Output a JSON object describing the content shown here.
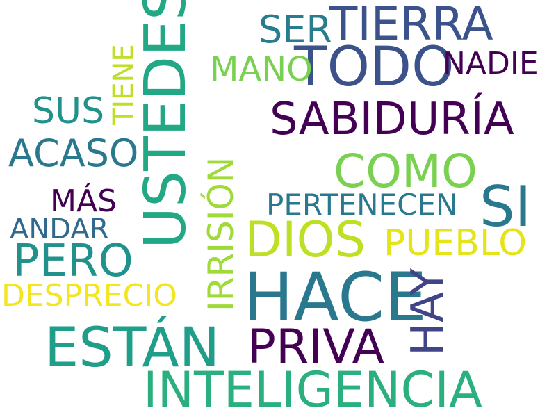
{
  "words": {
    "tierra": {
      "text": "TIERRA",
      "color": "#3b528b"
    },
    "ser": {
      "text": "SER",
      "color": "#287c8e"
    },
    "todo": {
      "text": "TODO",
      "color": "#3b528b"
    },
    "nadie": {
      "text": "NADIE",
      "color": "#440154"
    },
    "mano": {
      "text": "MANO",
      "color": "#7ad151"
    },
    "ustedes": {
      "text": "USTEDES",
      "color": "#22a884"
    },
    "tiene": {
      "text": "TIENE",
      "color": "#bddf26"
    },
    "sus": {
      "text": "SUS",
      "color": "#21918c"
    },
    "sabiduria": {
      "text": "SABIDURÍA",
      "color": "#440154"
    },
    "acaso": {
      "text": "ACASO",
      "color": "#2a788e"
    },
    "irrision": {
      "text": "IRRISIÓN",
      "color": "#a0da39"
    },
    "como": {
      "text": "COMO",
      "color": "#7ad151"
    },
    "mas": {
      "text": "MÁS",
      "color": "#440154"
    },
    "pertenecen": {
      "text": "PERTENECEN",
      "color": "#2a788e"
    },
    "si": {
      "text": "SI",
      "color": "#2a788e"
    },
    "andar": {
      "text": "ANDAR",
      "color": "#31688e"
    },
    "dios": {
      "text": "DIOS",
      "color": "#bddf26"
    },
    "pueblo": {
      "text": "PUEBLO",
      "color": "#e5e419"
    },
    "pero": {
      "text": "PERO",
      "color": "#21918c"
    },
    "desprecio": {
      "text": "DESPRECIO",
      "color": "#f3e51e"
    },
    "hace": {
      "text": "HACE",
      "color": "#2a788e"
    },
    "hay": {
      "text": "HAY",
      "color": "#414487"
    },
    "estan": {
      "text": "ESTÁN",
      "color": "#1f9e89"
    },
    "priva": {
      "text": "PRIVA",
      "color": "#440154"
    },
    "inteligencia": {
      "text": "INTELIGENCIA",
      "color": "#2ab07f"
    }
  }
}
